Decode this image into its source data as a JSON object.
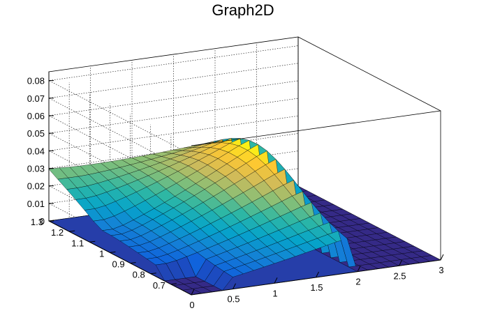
{
  "chart_data": {
    "type": "surface3d",
    "title": "Graph2D",
    "xlabel": "",
    "ylabel": "",
    "zlabel": "",
    "xlim": [
      0,
      3
    ],
    "ylim": [
      0.6,
      1.3
    ],
    "zlim": [
      0,
      0.085
    ],
    "x_ticks": [
      "0",
      "0.5",
      "1",
      "1.5",
      "2",
      "2.5",
      "3"
    ],
    "x_tick_values": [
      0,
      0.5,
      1,
      1.5,
      2,
      2.5,
      3
    ],
    "y_ticks": [
      "0.7",
      "0.8",
      "0.9",
      "1",
      "1.1",
      "1.2",
      "1.3"
    ],
    "y_tick_values": [
      0.7,
      0.8,
      0.9,
      1.0,
      1.1,
      1.2,
      1.3
    ],
    "z_ticks": [
      "0",
      "0.01",
      "0.02",
      "0.03",
      "0.04",
      "0.05",
      "0.06",
      "0.07",
      "0.08"
    ],
    "z_tick_values": [
      0,
      0.01,
      0.02,
      0.03,
      0.04,
      0.05,
      0.06,
      0.07,
      0.08
    ],
    "grid": true,
    "colormap": "viridis",
    "surface": {
      "x_range": [
        0,
        3
      ],
      "y_range": [
        0.6,
        1.3
      ],
      "nx": 24,
      "ny": 16,
      "peak_z": 0.047,
      "mass_threshold": 0.75,
      "peak_x": 1.85,
      "drop_x": 1.92,
      "colors_low_to_high": [
        "#352a87",
        "#0f5cdd",
        "#1481d6",
        "#06a4ca",
        "#2eb7a4",
        "#87bf77",
        "#d1bb59",
        "#fec832",
        "#f9fb0e"
      ]
    }
  }
}
